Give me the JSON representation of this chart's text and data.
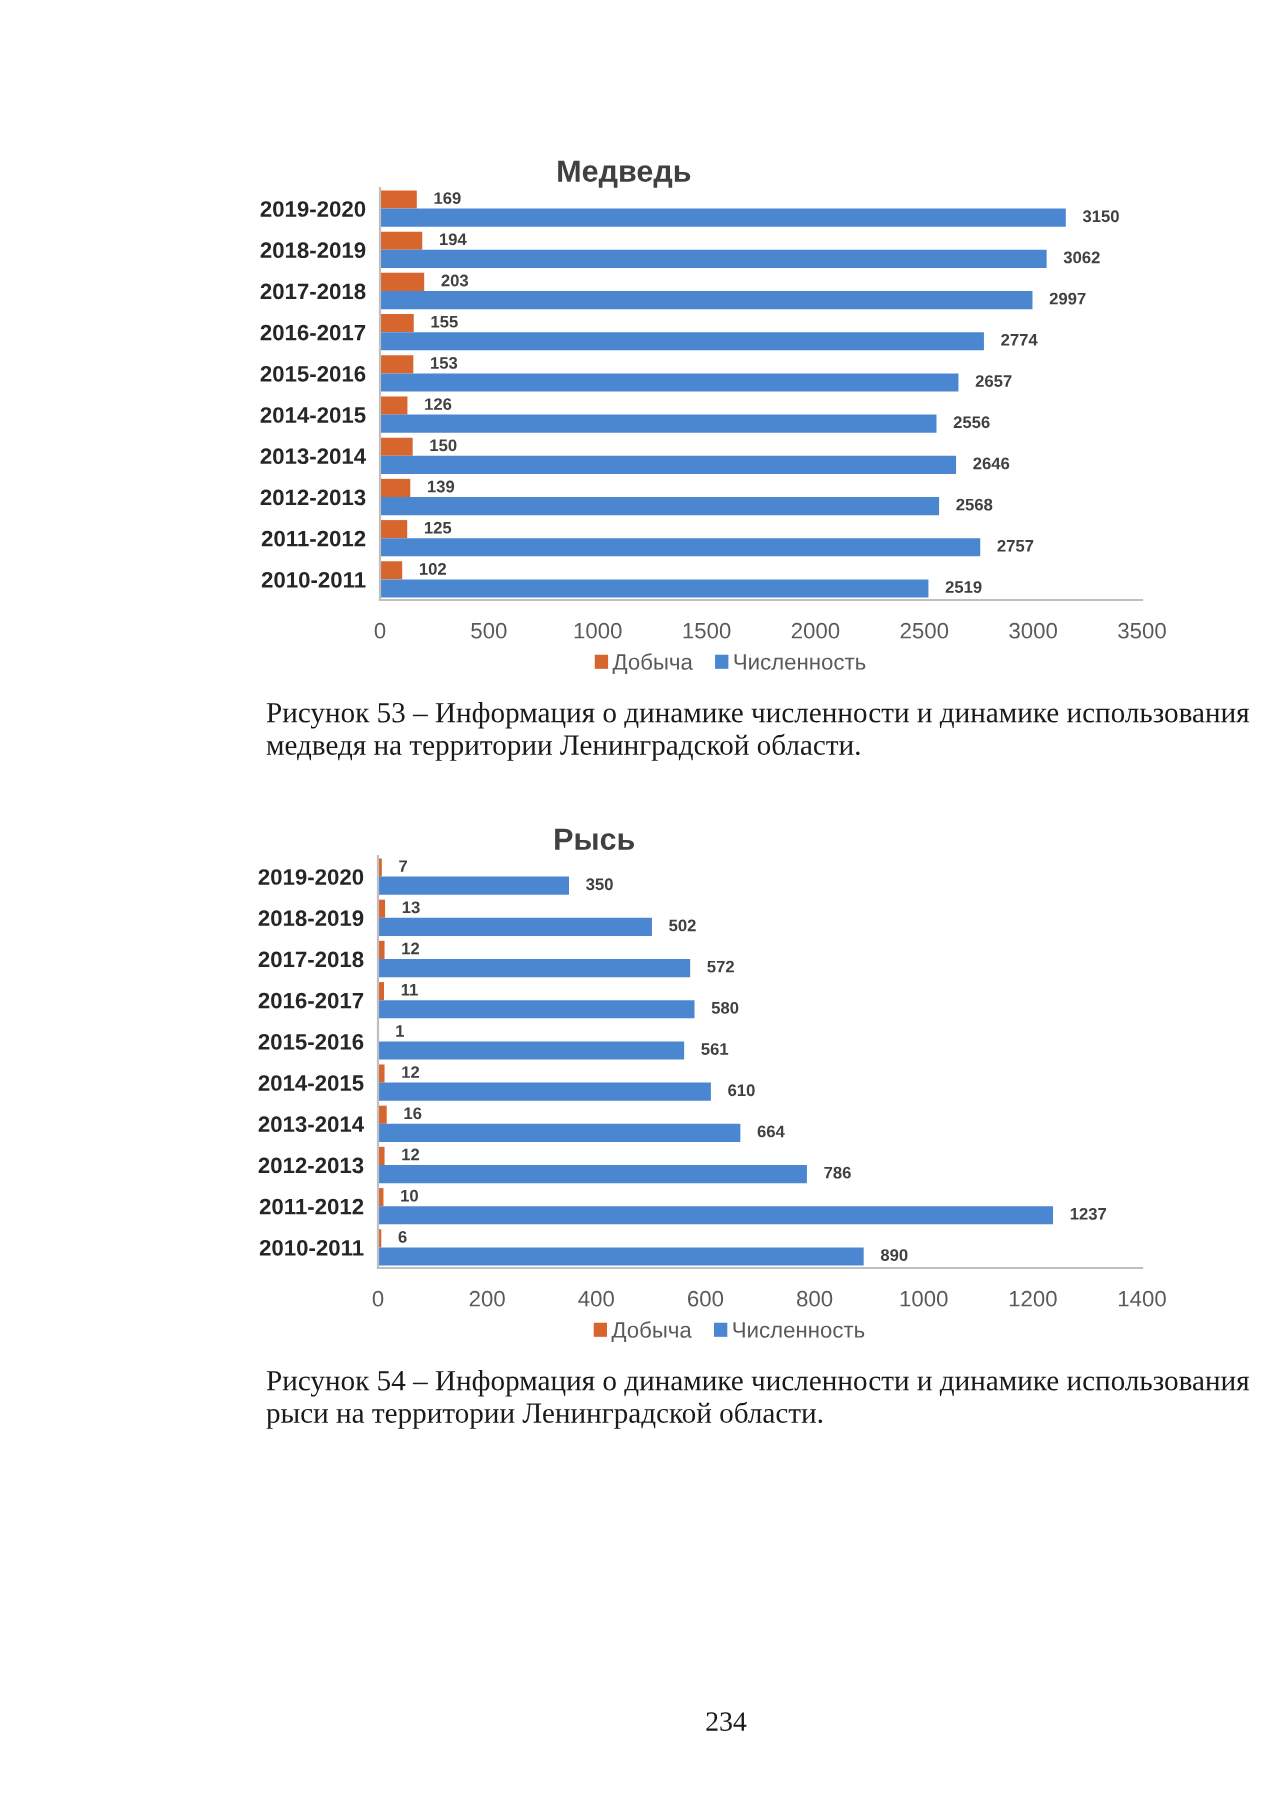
{
  "chart_data": [
    {
      "type": "bar",
      "orientation": "horizontal",
      "title": "Медведь",
      "categories": [
        "2019-2020",
        "2018-2019",
        "2017-2018",
        "2016-2017",
        "2015-2016",
        "2014-2015",
        "2013-2014",
        "2012-2013",
        "2011-2012",
        "2010-2011"
      ],
      "series": [
        {
          "name": "Добыча",
          "color": "#d6652e",
          "values": [
            169,
            194,
            203,
            155,
            153,
            126,
            150,
            139,
            125,
            102
          ]
        },
        {
          "name": "Численность",
          "color": "#4a87d0",
          "values": [
            3150,
            3062,
            2997,
            2774,
            2657,
            2556,
            2646,
            2568,
            2757,
            2519
          ]
        }
      ],
      "xlim": [
        0,
        3500
      ],
      "xticks": [
        0,
        500,
        1000,
        1500,
        2000,
        2500,
        3000,
        3500
      ],
      "data_labels": true,
      "legend": "bottom",
      "annotations": [
        "Рисунок 53 – Информация о динамике численности и динамике использования медведя на территории Ленинградской области."
      ]
    },
    {
      "type": "bar",
      "orientation": "horizontal",
      "title": "Рысь",
      "categories": [
        "2019-2020",
        "2018-2019",
        "2017-2018",
        "2016-2017",
        "2015-2016",
        "2014-2015",
        "2013-2014",
        "2012-2013",
        "2011-2012",
        "2010-2011"
      ],
      "series": [
        {
          "name": "Добыча",
          "color": "#d6652e",
          "values": [
            7,
            13,
            12,
            11,
            1,
            12,
            16,
            12,
            10,
            6
          ]
        },
        {
          "name": "Численность",
          "color": "#4a87d0",
          "values": [
            350,
            502,
            572,
            580,
            561,
            610,
            664,
            786,
            1237,
            890
          ]
        }
      ],
      "xlim": [
        0,
        1400
      ],
      "xticks": [
        0,
        200,
        400,
        600,
        800,
        1000,
        1200,
        1400
      ],
      "data_labels": true,
      "legend": "bottom",
      "annotations": [
        "Рисунок 54 – Информация о динамике численности и динамике использования рыси на территории Ленинградской области.",
        "234"
      ]
    }
  ]
}
